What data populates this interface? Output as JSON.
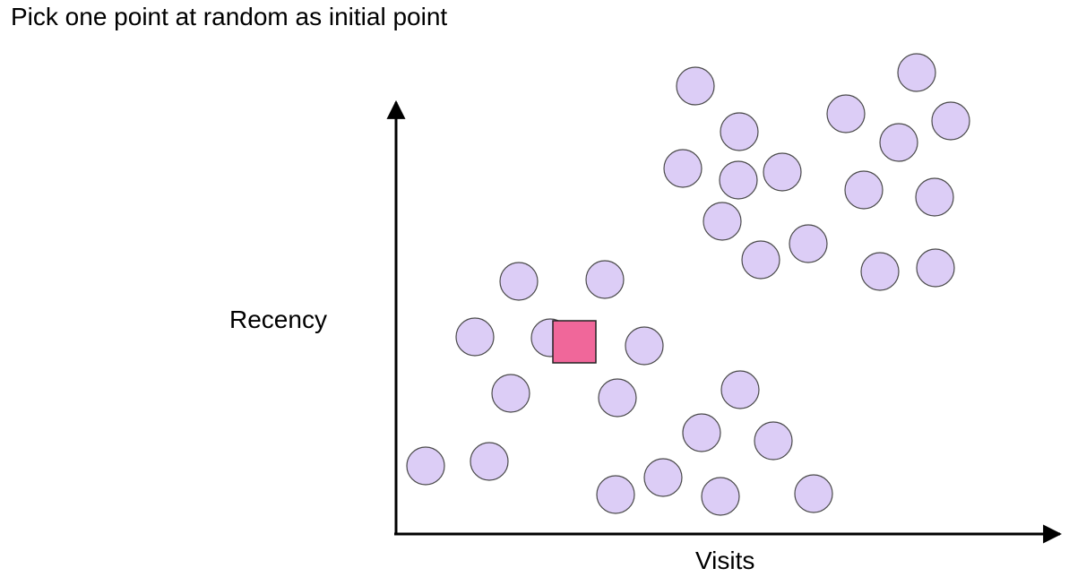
{
  "slide": {
    "title": "Pick one point at random as initial point"
  },
  "axes": {
    "x_label": "Visits",
    "y_label": "Recency"
  },
  "colors": {
    "point_fill": "#dccdf6",
    "point_stroke": "#4a4a4a",
    "initial_point_fill": "#f0679a",
    "initial_point_stroke": "#222222",
    "axis": "#000000"
  },
  "icons": {
    "point": "circle",
    "initial_point": "square"
  }
}
